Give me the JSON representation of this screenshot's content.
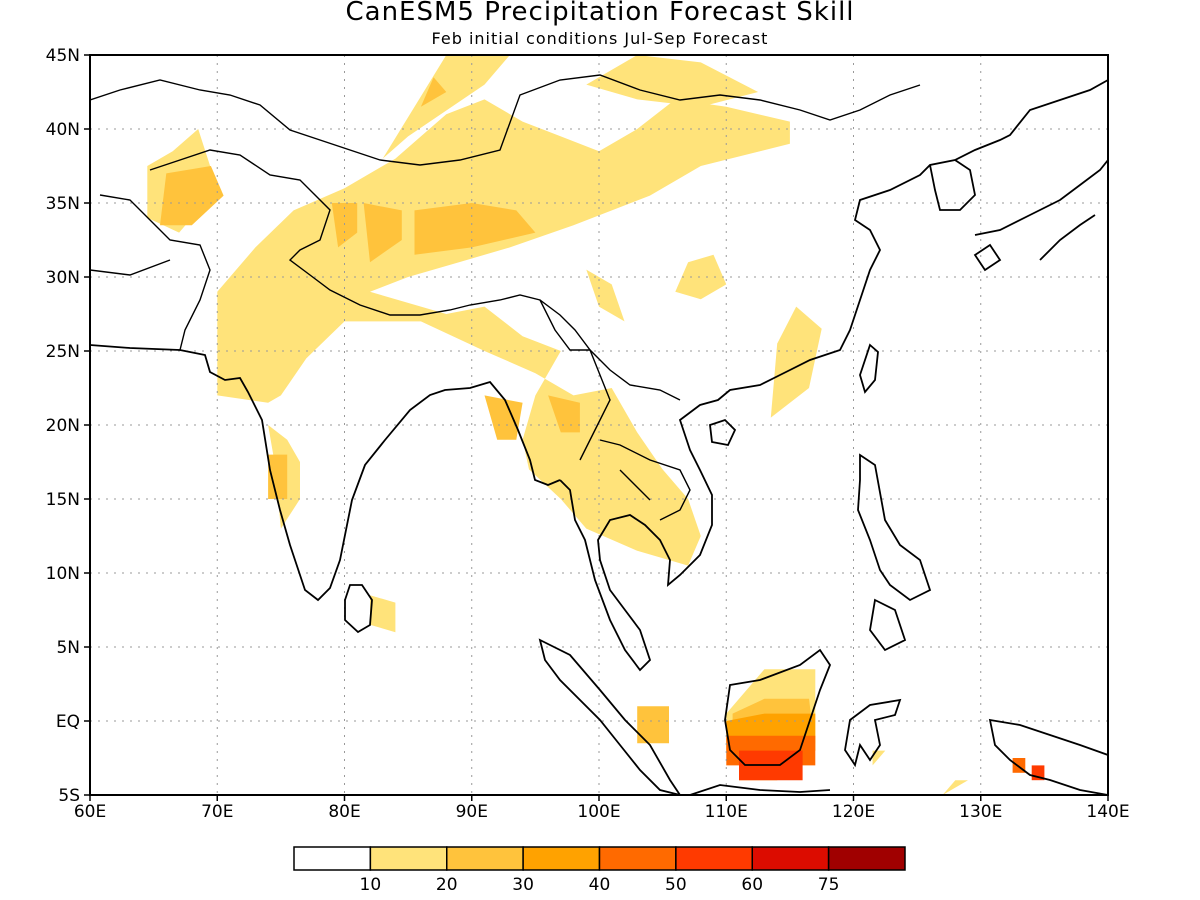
{
  "title": "CanESM5 Precipitation Forecast Skill",
  "subtitle": "Feb initial conditions  Jul-Sep Forecast",
  "chart_data": {
    "type": "heatmap",
    "title": "CanESM5 Precipitation Forecast Skill",
    "subtitle": "Feb initial conditions  Jul-Sep Forecast",
    "lon_range": [
      60,
      140
    ],
    "lat_range": [
      -5,
      45
    ],
    "x_ticks": [
      "60E",
      "70E",
      "80E",
      "90E",
      "100E",
      "110E",
      "120E",
      "130E",
      "140E"
    ],
    "y_ticks": [
      "5S",
      "EQ",
      "5N",
      "10N",
      "15N",
      "20N",
      "25N",
      "30N",
      "35N",
      "40N",
      "45N"
    ],
    "grid": "dotted",
    "colorbar": {
      "labels": [
        "10",
        "20",
        "30",
        "40",
        "50",
        "60",
        "75"
      ],
      "colors": [
        "#ffffff",
        "#ffe37a",
        "#ffc33c",
        "#ffa200",
        "#ff6a00",
        "#ff3a00",
        "#dc0c00",
        "#a00000"
      ]
    },
    "regions": [
      {
        "level": 1,
        "points": [
          [
            70,
            22
          ],
          [
            70,
            29
          ],
          [
            73,
            32
          ],
          [
            76,
            34.5
          ],
          [
            80,
            36
          ],
          [
            84,
            38
          ],
          [
            88,
            41
          ],
          [
            91,
            42
          ],
          [
            94,
            40.5
          ],
          [
            97,
            39.5
          ],
          [
            100,
            38.5
          ],
          [
            103,
            40
          ],
          [
            106,
            42
          ],
          [
            110,
            41.5
          ],
          [
            115,
            40.5
          ],
          [
            115,
            39
          ],
          [
            108,
            37.5
          ],
          [
            104,
            35.5
          ],
          [
            98,
            33.5
          ],
          [
            93,
            32
          ],
          [
            89,
            31
          ],
          [
            85,
            30
          ],
          [
            82,
            29
          ],
          [
            88,
            27.5
          ],
          [
            91,
            28
          ],
          [
            94,
            26
          ],
          [
            97,
            25
          ],
          [
            95,
            22
          ],
          [
            94,
            19
          ],
          [
            94.5,
            17
          ],
          [
            97,
            15
          ],
          [
            99,
            13
          ],
          [
            103,
            11.5
          ],
          [
            107,
            10.5
          ],
          [
            108,
            12.5
          ],
          [
            107,
            15
          ],
          [
            105,
            17
          ],
          [
            103,
            19.5
          ],
          [
            101,
            22.5
          ],
          [
            98,
            22
          ],
          [
            95,
            23.5
          ],
          [
            91,
            25
          ],
          [
            86,
            27
          ],
          [
            80,
            27
          ],
          [
            77,
            24.5
          ],
          [
            75,
            22
          ],
          [
            74,
            21.5
          ]
        ]
      },
      {
        "level": 1,
        "points": [
          [
            83,
            38
          ],
          [
            88,
            45
          ],
          [
            93,
            45
          ],
          [
            91,
            43
          ],
          [
            85,
            39.5
          ]
        ]
      },
      {
        "level": 1,
        "points": [
          [
            99,
            43
          ],
          [
            103,
            45
          ],
          [
            108,
            44.5
          ],
          [
            112.5,
            42.5
          ],
          [
            108,
            41.5
          ],
          [
            103,
            42
          ]
        ]
      },
      {
        "level": 1,
        "points": [
          [
            74,
            20
          ],
          [
            74.5,
            17.5
          ],
          [
            75,
            13
          ],
          [
            76.5,
            15
          ],
          [
            76.5,
            17.5
          ],
          [
            75.5,
            19
          ]
        ]
      },
      {
        "level": 1,
        "points": [
          [
            64.5,
            34
          ],
          [
            64.5,
            37.5
          ],
          [
            66.5,
            38.5
          ],
          [
            68.5,
            40
          ],
          [
            70,
            36
          ],
          [
            67,
            33
          ]
        ]
      },
      {
        "level": 1,
        "points": [
          [
            100,
            28
          ],
          [
            99,
            30.5
          ],
          [
            101,
            29.5
          ],
          [
            102,
            27
          ]
        ]
      },
      {
        "level": 1,
        "points": [
          [
            106,
            29
          ],
          [
            107,
            31
          ],
          [
            109,
            31.5
          ],
          [
            110,
            29.5
          ],
          [
            108,
            28.5
          ]
        ]
      },
      {
        "level": 1,
        "points": [
          [
            113.5,
            20.5
          ],
          [
            114,
            25.5
          ],
          [
            115.5,
            28
          ],
          [
            117.5,
            26.5
          ],
          [
            116.5,
            22.5
          ]
        ]
      },
      {
        "level": 1,
        "points": [
          [
            82,
            6.5
          ],
          [
            82,
            8.5
          ],
          [
            84,
            8
          ],
          [
            84,
            6
          ]
        ]
      },
      {
        "level": 1,
        "points": [
          [
            110,
            -1.5
          ],
          [
            110,
            0.5
          ],
          [
            113,
            3.5
          ],
          [
            117,
            3.5
          ],
          [
            117,
            -1.5
          ],
          [
            115,
            -3
          ]
        ]
      },
      {
        "level": 1,
        "points": [
          [
            114,
            -1
          ],
          [
            115,
            1
          ]
        ]
      },
      {
        "level": 1,
        "points": [
          [
            121.5,
            -3
          ],
          [
            121.5,
            -2
          ],
          [
            122.5,
            -2
          ]
        ]
      },
      {
        "level": 1,
        "points": [
          [
            127,
            -5
          ],
          [
            128,
            -4
          ],
          [
            129,
            -4
          ]
        ]
      },
      {
        "level": 2,
        "points": [
          [
            85.5,
            31.5
          ],
          [
            85.5,
            34.5
          ],
          [
            90,
            35
          ],
          [
            93.5,
            34.5
          ],
          [
            95,
            33
          ],
          [
            90,
            32
          ]
        ]
      },
      {
        "level": 2,
        "points": [
          [
            82,
            31
          ],
          [
            81.5,
            35
          ],
          [
            84.5,
            34.5
          ],
          [
            84.5,
            32.5
          ]
        ]
      },
      {
        "level": 2,
        "points": [
          [
            79.5,
            32
          ],
          [
            79,
            35
          ],
          [
            81,
            35
          ],
          [
            81,
            33
          ]
        ]
      },
      {
        "level": 2,
        "points": [
          [
            65.5,
            33.5
          ],
          [
            66,
            37
          ],
          [
            69.5,
            37.5
          ],
          [
            70.5,
            35.5
          ],
          [
            68,
            33.5
          ]
        ]
      },
      {
        "level": 2,
        "points": [
          [
            97,
            19.5
          ],
          [
            96,
            22
          ],
          [
            98.5,
            21.5
          ],
          [
            98.5,
            19.5
          ]
        ]
      },
      {
        "level": 2,
        "points": [
          [
            92,
            19
          ],
          [
            91,
            22
          ],
          [
            94,
            21.5
          ],
          [
            93.5,
            19
          ]
        ]
      },
      {
        "level": 2,
        "points": [
          [
            86,
            41.5
          ],
          [
            87,
            43.5
          ],
          [
            88,
            42.5
          ]
        ]
      },
      {
        "level": 2,
        "points": [
          [
            74,
            15
          ],
          [
            74,
            18
          ],
          [
            75.5,
            18
          ],
          [
            75.5,
            15
          ]
        ]
      },
      {
        "level": 2,
        "points": [
          [
            103,
            -1.5
          ],
          [
            103,
            1
          ],
          [
            105.5,
            1
          ],
          [
            105.5,
            -1.5
          ]
        ]
      },
      {
        "level": 2,
        "points": [
          [
            110.5,
            -2
          ],
          [
            110.5,
            0.5
          ],
          [
            113,
            1.5
          ],
          [
            116.5,
            1.5
          ],
          [
            117,
            -2
          ]
        ]
      },
      {
        "level": 2,
        "points": [
          [
            111,
            -4
          ],
          [
            111,
            -1
          ],
          [
            114,
            -1
          ],
          [
            115,
            -2.5
          ],
          [
            114,
            -4
          ]
        ]
      },
      {
        "level": 3,
        "points": [
          [
            110,
            -2
          ],
          [
            110,
            0
          ],
          [
            113,
            0.5
          ],
          [
            117,
            0.5
          ],
          [
            117,
            -2
          ]
        ]
      },
      {
        "level": 4,
        "points": [
          [
            110,
            -3
          ],
          [
            110,
            -1
          ],
          [
            117,
            -1
          ],
          [
            117,
            -3
          ]
        ]
      },
      {
        "level": 4,
        "points": [
          [
            132.5,
            -3.5
          ],
          [
            132.5,
            -2.5
          ],
          [
            133.5,
            -2.5
          ],
          [
            133.5,
            -3.5
          ]
        ]
      },
      {
        "level": 5,
        "points": [
          [
            111,
            -4
          ],
          [
            111,
            -2
          ],
          [
            116,
            -2
          ],
          [
            116,
            -4
          ]
        ]
      },
      {
        "level": 5,
        "points": [
          [
            134,
            -4
          ],
          [
            134,
            -3
          ],
          [
            135,
            -3
          ],
          [
            135,
            -4
          ]
        ]
      }
    ]
  }
}
